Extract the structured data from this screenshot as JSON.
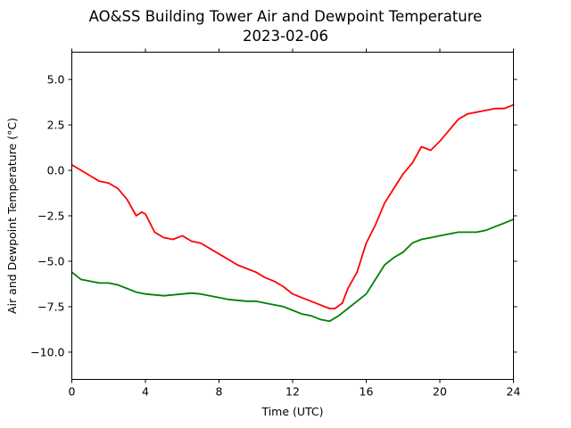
{
  "chart_data": {
    "type": "line",
    "title": "AO&SS Building Tower Air and Dewpoint Temperature",
    "subtitle": "2023-02-06",
    "xlabel": "Time (UTC)",
    "ylabel": "Air and Dewpoint Temperature (°C)",
    "xlim": [
      0,
      24
    ],
    "ylim": [
      -11.5,
      6.5
    ],
    "x_ticks": [
      0,
      4,
      8,
      12,
      16,
      20,
      24
    ],
    "x_tick_labels": [
      "0",
      "4",
      "8",
      "12",
      "16",
      "20",
      "24"
    ],
    "y_ticks": [
      -10.0,
      -7.5,
      -5.0,
      -2.5,
      0.0,
      2.5,
      5.0
    ],
    "y_tick_labels": [
      "−10.0",
      "−7.5",
      "−5.0",
      "−2.5",
      "0.0",
      "2.5",
      "5.0"
    ],
    "grid": false,
    "legend": "none",
    "series": [
      {
        "color": "#ff0000",
        "x": [
          0,
          0.5,
          1,
          1.5,
          2,
          2.5,
          3,
          3.5,
          3.8,
          4,
          4.2,
          4.5,
          5,
          5.5,
          6,
          6.5,
          7,
          7.5,
          8,
          8.5,
          9,
          9.5,
          10,
          10.5,
          11,
          11.5,
          12,
          12.5,
          13,
          13.5,
          14,
          14.3,
          14.7,
          15,
          15.5,
          16,
          16.5,
          17,
          17.5,
          18,
          18.5,
          19,
          19.5,
          20,
          20.5,
          21,
          21.5,
          22,
          22.5,
          23,
          23.5,
          24
        ],
        "y": [
          0.3,
          0.0,
          -0.3,
          -0.6,
          -0.7,
          -1.0,
          -1.6,
          -2.5,
          -2.3,
          -2.4,
          -2.8,
          -3.4,
          -3.7,
          -3.8,
          -3.6,
          -3.9,
          -4.0,
          -4.3,
          -4.6,
          -4.9,
          -5.2,
          -5.4,
          -5.6,
          -5.9,
          -6.1,
          -6.4,
          -6.8,
          -7.0,
          -7.2,
          -7.4,
          -7.6,
          -7.6,
          -7.3,
          -6.5,
          -5.6,
          -4.0,
          -3.0,
          -1.8,
          -1.0,
          -0.2,
          0.4,
          1.3,
          1.1,
          1.6,
          2.2,
          2.8,
          3.1,
          3.2,
          3.3,
          3.4,
          3.4,
          3.6
        ]
      },
      {
        "color": "#008000",
        "x": [
          0,
          0.5,
          1,
          1.5,
          2,
          2.5,
          3,
          3.5,
          4,
          4.5,
          5,
          5.5,
          6,
          6.5,
          7,
          7.5,
          8,
          8.5,
          9,
          9.5,
          10,
          10.5,
          11,
          11.5,
          12,
          12.5,
          13,
          13.5,
          14,
          14.5,
          15,
          15.5,
          16,
          16.5,
          17,
          17.5,
          18,
          18.5,
          19,
          19.5,
          20,
          20.5,
          21,
          21.5,
          22,
          22.5,
          23,
          23.5,
          24
        ],
        "y": [
          -5.6,
          -6.0,
          -6.1,
          -6.2,
          -6.2,
          -6.3,
          -6.5,
          -6.7,
          -6.8,
          -6.85,
          -6.9,
          -6.85,
          -6.8,
          -6.75,
          -6.8,
          -6.9,
          -7.0,
          -7.1,
          -7.15,
          -7.2,
          -7.2,
          -7.3,
          -7.4,
          -7.5,
          -7.7,
          -7.9,
          -8.0,
          -8.2,
          -8.3,
          -8.0,
          -7.6,
          -7.2,
          -6.8,
          -6.0,
          -5.2,
          -4.8,
          -4.5,
          -4.0,
          -3.8,
          -3.7,
          -3.6,
          -3.5,
          -3.4,
          -3.4,
          -3.4,
          -3.3,
          -3.1,
          -2.9,
          -2.7
        ]
      }
    ]
  }
}
